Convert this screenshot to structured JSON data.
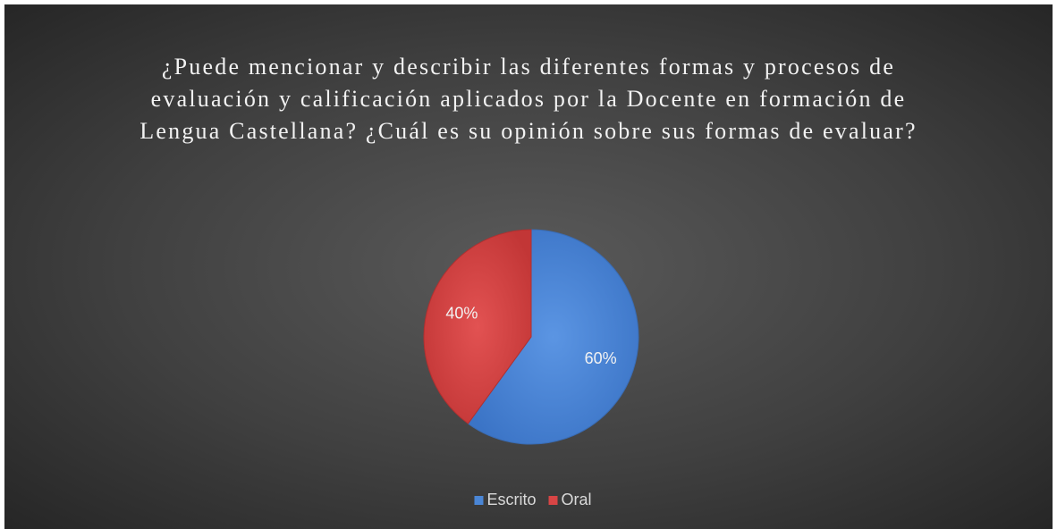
{
  "chart_data": {
    "type": "pie",
    "title": "¿Puede mencionar y describir las diferentes formas y procesos de evaluación y calificación aplicados por la Docente en formación de Lengua Castellana? ¿Cuál es su opinión sobre sus formas de evaluar?",
    "categories": [
      "Escrito",
      "Oral"
    ],
    "values": [
      60,
      40
    ],
    "value_labels": [
      "60%",
      "40%"
    ],
    "colors": [
      "#4a86d6",
      "#d84545"
    ],
    "legend": "bottom"
  }
}
